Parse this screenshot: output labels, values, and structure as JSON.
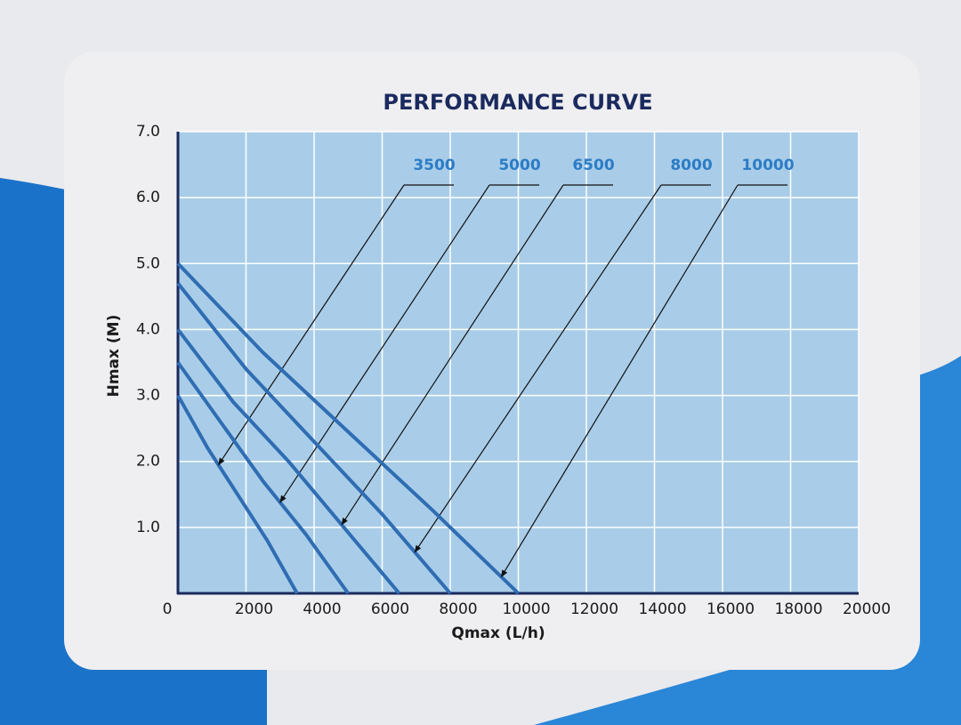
{
  "chart_data": {
    "type": "line",
    "title": "PERFORMANCE CURVE",
    "x_label": "Qmax (L/h)",
    "y_label": "Hmax (M)",
    "xlim": [
      0,
      20000
    ],
    "ylim": [
      0,
      7
    ],
    "xticks": [
      0,
      2000,
      4000,
      6000,
      8000,
      10000,
      12000,
      14000,
      16000,
      18000,
      20000
    ],
    "yticks": [
      {
        "value": 1,
        "label": "1.0"
      },
      {
        "value": 2,
        "label": "2.0"
      },
      {
        "value": 3,
        "label": "3.0"
      },
      {
        "value": 4,
        "label": "4.0"
      },
      {
        "value": 5,
        "label": "5.0"
      },
      {
        "value": 6,
        "label": "6.0"
      },
      {
        "value": 7,
        "label": "7.0"
      }
    ],
    "grid": true,
    "series": [
      {
        "name": "3500",
        "color": "#2f6db3",
        "x": [
          0,
          875,
          1750,
          2625,
          3500
        ],
        "values": [
          3.0,
          2.2,
          1.5,
          0.8,
          0
        ]
      },
      {
        "name": "5000",
        "color": "#2f6db3",
        "x": [
          0,
          1250,
          2500,
          3750,
          5000
        ],
        "values": [
          3.5,
          2.6,
          1.7,
          0.9,
          0
        ]
      },
      {
        "name": "6500",
        "color": "#2f6db3",
        "x": [
          0,
          1625,
          3250,
          4875,
          6500
        ],
        "values": [
          4.0,
          2.9,
          2.0,
          1.0,
          0
        ]
      },
      {
        "name": "8000",
        "color": "#2f6db3",
        "x": [
          0,
          2000,
          4000,
          6000,
          8000
        ],
        "values": [
          4.7,
          3.4,
          2.3,
          1.2,
          0
        ]
      },
      {
        "name": "10000",
        "color": "#2f6db3",
        "x": [
          0,
          2500,
          5000,
          7500,
          10000
        ],
        "values": [
          5.0,
          3.65,
          2.45,
          1.25,
          0
        ]
      }
    ]
  }
}
